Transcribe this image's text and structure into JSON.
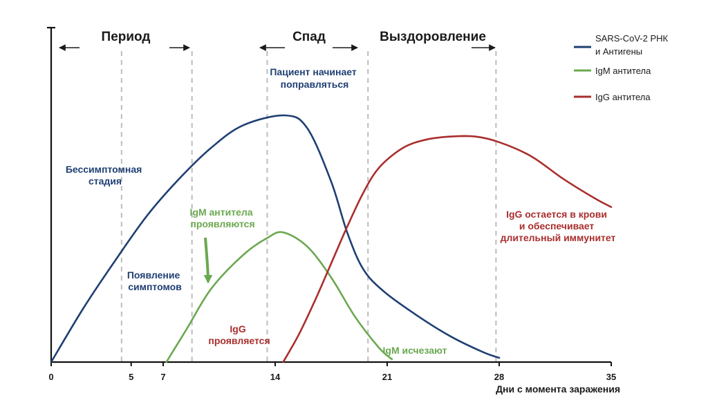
{
  "chart_data": {
    "type": "line",
    "xlabel": "Дни с момента заражения",
    "ylabel": "",
    "xlim": [
      0,
      35
    ],
    "ylim": [
      0,
      1
    ],
    "x_ticks": [
      "0",
      "5",
      "7",
      "14",
      "21",
      "28",
      "35"
    ],
    "grid": false,
    "legend_position": "top-right",
    "phases": [
      {
        "label": "Период",
        "from": 0,
        "to": 8.8
      },
      {
        "label": "Спад",
        "from": 13.5,
        "to": 19.8
      },
      {
        "label": "Выздоровление",
        "from": 19.8,
        "to": 27.8
      }
    ],
    "vlines": [
      4.4,
      8.8,
      13.5,
      19.8,
      27.8
    ],
    "series": [
      {
        "name": "SARS-CoV-2 РНК и Антигены",
        "color": "#1f3f73",
        "points": [
          [
            0,
            0
          ],
          [
            2,
            0.19
          ],
          [
            4,
            0.36
          ],
          [
            6,
            0.52
          ],
          [
            8,
            0.65
          ],
          [
            10,
            0.76
          ],
          [
            12,
            0.84
          ],
          [
            14.6,
            0.875
          ],
          [
            16,
            0.83
          ],
          [
            17.5,
            0.64
          ],
          [
            18.5,
            0.46
          ],
          [
            19.5,
            0.33
          ],
          [
            20.8,
            0.25
          ],
          [
            23,
            0.16
          ],
          [
            25,
            0.09
          ],
          [
            27,
            0.035
          ],
          [
            28,
            0.015
          ]
        ]
      },
      {
        "name": "IgM антитела",
        "color": "#6aa84f",
        "points": [
          [
            7.2,
            0
          ],
          [
            8.5,
            0.12
          ],
          [
            10,
            0.26
          ],
          [
            12,
            0.38
          ],
          [
            13.5,
            0.44
          ],
          [
            14.5,
            0.46
          ],
          [
            16,
            0.41
          ],
          [
            17.5,
            0.3
          ],
          [
            19,
            0.16
          ],
          [
            20.5,
            0.05
          ],
          [
            21.3,
            0.01
          ]
        ]
      },
      {
        "name": "IgG антитела",
        "color": "#aa2e2e",
        "points": [
          [
            14.5,
            0
          ],
          [
            15.5,
            0.1
          ],
          [
            16.5,
            0.22
          ],
          [
            17.5,
            0.35
          ],
          [
            18.5,
            0.48
          ],
          [
            19.5,
            0.6
          ],
          [
            20.5,
            0.69
          ],
          [
            22,
            0.76
          ],
          [
            23.5,
            0.79
          ],
          [
            25,
            0.8
          ],
          [
            26.5,
            0.8
          ],
          [
            28,
            0.78
          ],
          [
            30,
            0.73
          ],
          [
            32,
            0.65
          ],
          [
            34,
            0.58
          ],
          [
            35,
            0.55
          ]
        ]
      }
    ],
    "annotations": [
      {
        "text": [
          "Бессимптомная",
          "стадия"
        ],
        "color": "#1f3f73"
      },
      {
        "text": [
          "Появление",
          "симптомов"
        ],
        "color": "#1f3f73"
      },
      {
        "text": [
          "Пациент начинает",
          "поправляться"
        ],
        "color": "#1f3f73"
      },
      {
        "text": [
          "IgM антитела",
          "проявляются"
        ],
        "color": "#6aa84f"
      },
      {
        "text": [
          "IgG",
          "проявляется"
        ],
        "color": "#aa2e2e"
      },
      {
        "text": [
          "IgM исчезают"
        ],
        "color": "#6aa84f"
      },
      {
        "text": [
          "IgG остается в крови",
          "и обеспечивает",
          "длительный иммунитет"
        ],
        "color": "#aa2e2e"
      }
    ]
  }
}
